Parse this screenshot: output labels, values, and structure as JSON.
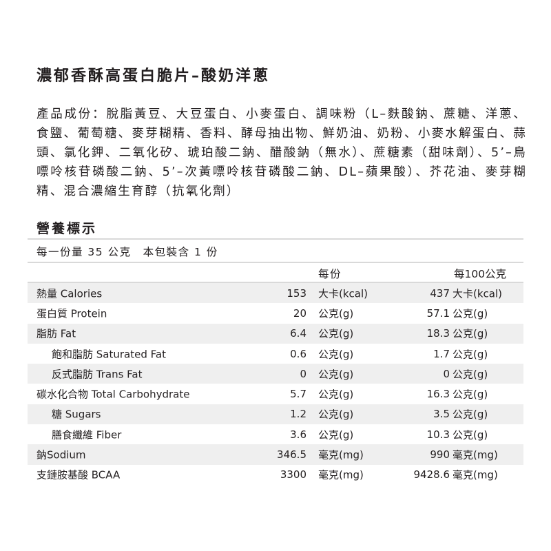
{
  "title": "濃郁香酥高蛋白脆片–酸奶洋蔥",
  "ingredients": "產品成份：脫脂黃豆、大豆蛋白、小麥蛋白、調味粉（L–麩酸鈉、蔗糖、洋蔥、食鹽、葡萄糖、麥芽糊精、香料、酵母抽出物、鮮奶油、奶粉、小麥水解蛋白、蒜頭、氯化鉀、二氧化矽、琥珀酸二鈉、醋酸鈉（無水）、蔗糖素（甜味劑）、5’–鳥嘌呤核苷磷酸二鈉、5’–次黃嘌呤核苷磷酸二鈉、DL–蘋果酸）、芥花油、麥芽糊精、混合濃縮生育醇（抗氧化劑）",
  "nutrition": {
    "heading": "營養標示",
    "serving": "每一份量 35 公克　本包裝含 1 份",
    "col_per_serving": "每份",
    "col_per_100g": "每100公克",
    "rows": [
      {
        "name": "熱量 Calories",
        "v1": "153",
        "u1": "大卡(kcal)",
        "v2": "437",
        "u2": "大卡(kcal)"
      },
      {
        "name": "蛋白質 Protein",
        "v1": "20",
        "u1": "公克(g)",
        "v2": "57.1",
        "u2": "公克(g)"
      },
      {
        "name": "脂肪 Fat",
        "v1": "6.4",
        "u1": "公克(g)",
        "v2": "18.3",
        "u2": "公克(g)"
      },
      {
        "name": "飽和脂肪 Saturated Fat",
        "v1": "0.6",
        "u1": "公克(g)",
        "v2": "1.7",
        "u2": "公克(g)"
      },
      {
        "name": "反式脂肪 Trans Fat",
        "v1": "0",
        "u1": "公克(g)",
        "v2": "0",
        "u2": "公克(g)"
      },
      {
        "name": "碳水化合物 Total Carbohydrate",
        "v1": "5.7",
        "u1": "公克(g)",
        "v2": "16.3",
        "u2": "公克(g)"
      },
      {
        "name": "糖 Sugars",
        "v1": "1.2",
        "u1": "公克(g)",
        "v2": "3.5",
        "u2": "公克(g)"
      },
      {
        "name": "膳食纖維 Fiber",
        "v1": "3.6",
        "u1": "公克(g)",
        "v2": "10.3",
        "u2": "公克(g)"
      },
      {
        "name": "鈉Sodium",
        "v1": "346.5",
        "u1": "毫克(mg)",
        "v2": "990",
        "u2": "毫克(mg)"
      },
      {
        "name": "支鏈胺基酸 BCAA",
        "v1": "3300",
        "u1": "毫克(mg)",
        "v2": "9428.6",
        "u2": "毫克(mg)"
      }
    ]
  }
}
